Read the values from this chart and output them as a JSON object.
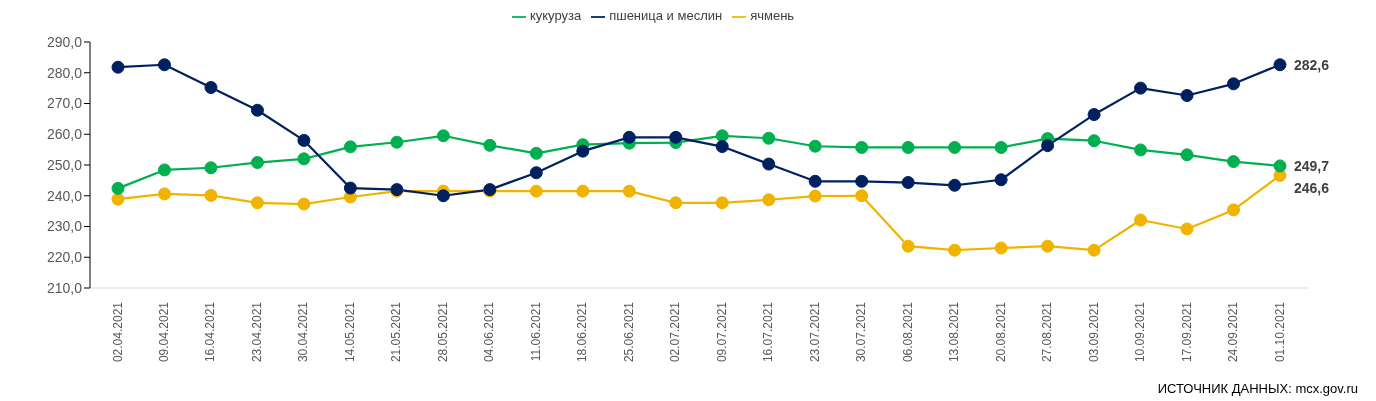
{
  "chart_data": {
    "type": "line",
    "categories": [
      "02.04.2021",
      "09.04.2021",
      "16.04.2021",
      "23.04.2021",
      "30.04.2021",
      "14.05.2021",
      "21.05.2021",
      "28.05.2021",
      "04.06.2021",
      "11.06.2021",
      "18.06.2021",
      "25.06.2021",
      "02.07.2021",
      "09.07.2021",
      "16.07.2021",
      "23.07.2021",
      "30.07.2021",
      "06.08.2021",
      "13.08.2021",
      "20.08.2021",
      "27.08.2021",
      "03.09.2021",
      "10.09.2021",
      "17.09.2021",
      "24.09.2021",
      "01.10.2021"
    ],
    "series": [
      {
        "name": "пшеница и меслин",
        "color": "#002060",
        "values": [
          281.8,
          282.6,
          275.2,
          267.8,
          258,
          242.5,
          242,
          240,
          242,
          247.5,
          254.5,
          259,
          259,
          256,
          250.3,
          244.7,
          244.7,
          244.3,
          243.4,
          245.2,
          256.3,
          266.4,
          275,
          272.6,
          276.4,
          282.6
        ],
        "value_labels": [
          null,
          null,
          null,
          null,
          null,
          null,
          null,
          null,
          null,
          null,
          null,
          null,
          null,
          null,
          null,
          null,
          null,
          null,
          null,
          null,
          null,
          null,
          null,
          null,
          null,
          "282,6"
        ]
      },
      {
        "name": "ячмень",
        "color": "#f0b400",
        "values": [
          238.9,
          240.6,
          240.1,
          237.7,
          237.3,
          239.6,
          241.5,
          241.5,
          241.5,
          241.5,
          241.5,
          241.5,
          237.7,
          237.7,
          238.7,
          239.9,
          240,
          223.6,
          222.3,
          223,
          223.6,
          222.3,
          232.1,
          229.2,
          235.4,
          246.6
        ],
        "value_labels": [
          null,
          null,
          null,
          null,
          null,
          null,
          null,
          null,
          null,
          null,
          null,
          null,
          null,
          null,
          null,
          null,
          null,
          null,
          null,
          null,
          null,
          null,
          null,
          null,
          null,
          "246,6"
        ]
      },
      {
        "name": "кукуруза",
        "color": "#00b050",
        "values": [
          242.4,
          248.4,
          249.1,
          250.8,
          252,
          255.9,
          257.4,
          259.5,
          256.4,
          253.8,
          256.6,
          257.1,
          257.3,
          259.5,
          258.7,
          256.1,
          255.7,
          255.7,
          255.7,
          255.7,
          258.6,
          257.9,
          254.9,
          253.3,
          251.1,
          249.7
        ],
        "value_labels": [
          null,
          null,
          null,
          null,
          null,
          null,
          null,
          null,
          null,
          null,
          null,
          null,
          null,
          null,
          null,
          null,
          null,
          null,
          null,
          null,
          null,
          null,
          null,
          null,
          null,
          "249,7"
        ]
      }
    ],
    "ylim": [
      210,
      290
    ],
    "yticks": [
      {
        "value": 210,
        "label": "210,0"
      },
      {
        "value": 220,
        "label": "220,0"
      },
      {
        "value": 230,
        "label": "230,0"
      },
      {
        "value": 240,
        "label": "240,0"
      },
      {
        "value": 250,
        "label": "250,0"
      },
      {
        "value": 260,
        "label": "260,0"
      },
      {
        "value": 270,
        "label": "270,0"
      },
      {
        "value": 280,
        "label": "280,0"
      },
      {
        "value": 290,
        "label": "290,0"
      }
    ],
    "legend": "top",
    "marker": "circle",
    "line_style": "solid",
    "annotations": [
      "ИСТОЧНИК ДАННЫХ: mcx.gov.ru"
    ]
  }
}
